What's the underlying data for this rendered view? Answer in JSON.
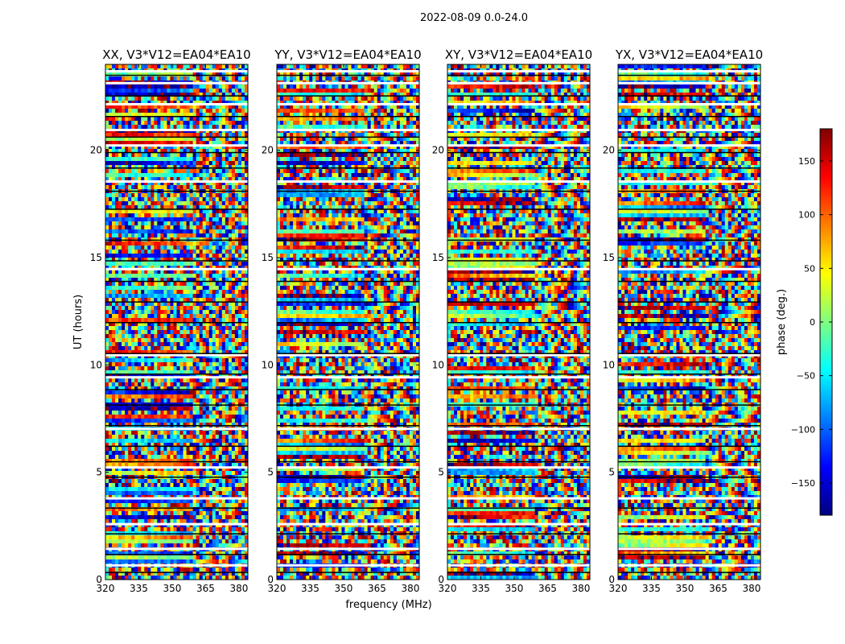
{
  "figure": {
    "suptitle": "2022-08-09 0.0-24.0",
    "xlabel": "frequency (MHz)",
    "ylabel": "UT (hours)"
  },
  "colorbar": {
    "label": "phase (deg.)",
    "range": [
      -180,
      180
    ],
    "ticks": [
      150,
      100,
      50,
      0,
      -50,
      -100,
      -150
    ],
    "tick_labels": [
      "150",
      "100",
      "50",
      "0",
      "−50",
      "−100",
      "−150"
    ],
    "colormap": "jet",
    "colors": [
      "#00007f",
      "#0000ff",
      "#007fff",
      "#00ffff",
      "#7fff7f",
      "#ffff00",
      "#ff7f00",
      "#ff0000",
      "#7f0000"
    ]
  },
  "chart_data": [
    {
      "type": "heatmap",
      "title": "XX, V3*V12=EA04*EA10",
      "x_ticks": [
        320,
        335,
        350,
        365,
        380
      ],
      "x_tick_labels": [
        "320",
        "335",
        "350",
        "365",
        "380"
      ],
      "xlim": [
        320,
        384
      ],
      "y_ticks": [
        0,
        5,
        10,
        15,
        20
      ],
      "y_tick_labels": [
        "0",
        "5",
        "10",
        "15",
        "20"
      ],
      "ylim": [
        0,
        24
      ],
      "value": "phase (deg.)"
    },
    {
      "type": "heatmap",
      "title": "YY, V3*V12=EA04*EA10",
      "x_ticks": [
        320,
        335,
        350,
        365,
        380
      ],
      "x_tick_labels": [
        "320",
        "335",
        "350",
        "365",
        "380"
      ],
      "xlim": [
        320,
        384
      ],
      "y_ticks": [
        0,
        5,
        10,
        15,
        20
      ],
      "y_tick_labels": [
        "0",
        "5",
        "10",
        "15",
        "20"
      ],
      "ylim": [
        0,
        24
      ],
      "value": "phase (deg.)"
    },
    {
      "type": "heatmap",
      "title": "XY, V3*V12=EA04*EA10",
      "x_ticks": [
        320,
        335,
        350,
        365,
        380
      ],
      "x_tick_labels": [
        "320",
        "335",
        "350",
        "365",
        "380"
      ],
      "xlim": [
        320,
        384
      ],
      "y_ticks": [
        0,
        5,
        10,
        15,
        20
      ],
      "y_tick_labels": [
        "0",
        "5",
        "10",
        "15",
        "20"
      ],
      "ylim": [
        0,
        24
      ],
      "value": "phase (deg.)"
    },
    {
      "type": "heatmap",
      "title": "YX, V3*V12=EA04*EA10",
      "x_ticks": [
        320,
        335,
        350,
        365,
        380
      ],
      "x_tick_labels": [
        "320",
        "335",
        "350",
        "365",
        "380"
      ],
      "xlim": [
        320,
        384
      ],
      "y_ticks": [
        0,
        5,
        10,
        15,
        20
      ],
      "y_tick_labels": [
        "0",
        "5",
        "10",
        "15",
        "20"
      ],
      "ylim": [
        0,
        24
      ],
      "value": "phase (deg.)"
    }
  ]
}
